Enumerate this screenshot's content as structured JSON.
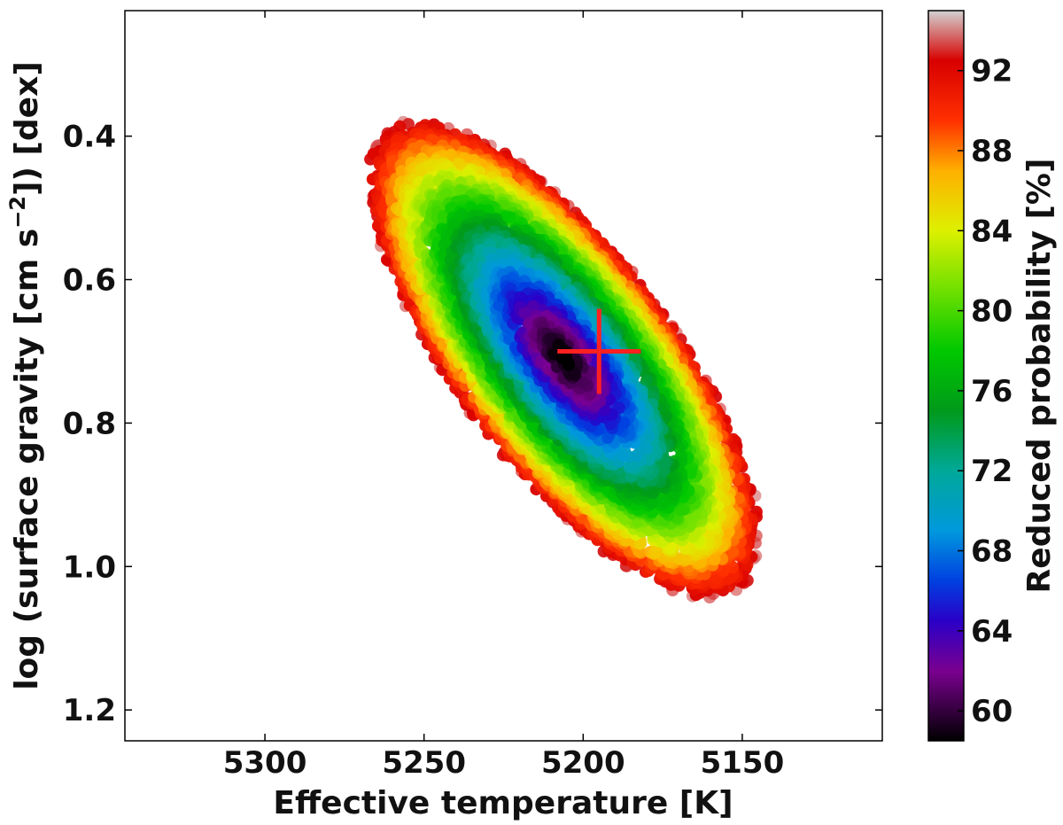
{
  "chart_data": {
    "type": "scatter",
    "xlabel": "Effective temperature [K]",
    "ylabel_parts": [
      "log (surface gravity [cm s",
      "−2",
      "]) [dex]"
    ],
    "xlim": [
      5344,
      5106
    ],
    "ylim": [
      1.243,
      0.225
    ],
    "x_ticks": [
      {
        "value": 5300,
        "label": "5300"
      },
      {
        "value": 5250,
        "label": "5250"
      },
      {
        "value": 5200,
        "label": "5200"
      },
      {
        "value": 5150,
        "label": "5150"
      }
    ],
    "y_ticks": [
      {
        "value": 0.4,
        "label": "0.4"
      },
      {
        "value": 0.6,
        "label": "0.6"
      },
      {
        "value": 0.8,
        "label": "0.8"
      },
      {
        "value": 1.0,
        "label": "1.0"
      },
      {
        "value": 1.2,
        "label": "1.2"
      }
    ],
    "grid": false,
    "x_inverted": true,
    "y_inverted": true,
    "distribution": {
      "center_teff": 5206,
      "center_logg": 0.71,
      "major_axis_teff_per_logg": -300,
      "min_probability": 58.5,
      "max_probability": 95,
      "approx_point_count": 6000
    },
    "best_fit_marker": {
      "teff": 5195,
      "logg": 0.7,
      "color": "#ff2020"
    },
    "colorbar": {
      "label": "Reduced probability [%]",
      "range": [
        58.5,
        95
      ],
      "ticks": [
        {
          "value": 60,
          "label": "60"
        },
        {
          "value": 64,
          "label": "64"
        },
        {
          "value": 68,
          "label": "68"
        },
        {
          "value": 72,
          "label": "72"
        },
        {
          "value": 76,
          "label": "76"
        },
        {
          "value": 80,
          "label": "80"
        },
        {
          "value": 84,
          "label": "84"
        },
        {
          "value": 88,
          "label": "88"
        },
        {
          "value": 92,
          "label": "92"
        }
      ],
      "colormap": [
        {
          "v": 58.5,
          "color": "#000000"
        },
        {
          "v": 62,
          "color": "#7a0090"
        },
        {
          "v": 64.5,
          "color": "#2a00c8"
        },
        {
          "v": 66.5,
          "color": "#0040e0"
        },
        {
          "v": 69,
          "color": "#0099dd"
        },
        {
          "v": 72,
          "color": "#00a898"
        },
        {
          "v": 75,
          "color": "#009a1a"
        },
        {
          "v": 78,
          "color": "#00c800"
        },
        {
          "v": 81,
          "color": "#6ee000"
        },
        {
          "v": 84,
          "color": "#ddf000"
        },
        {
          "v": 87,
          "color": "#ffb000"
        },
        {
          "v": 89.5,
          "color": "#ff3000"
        },
        {
          "v": 92.5,
          "color": "#d80000"
        },
        {
          "v": 95,
          "color": "#d2d2d2"
        }
      ]
    }
  }
}
